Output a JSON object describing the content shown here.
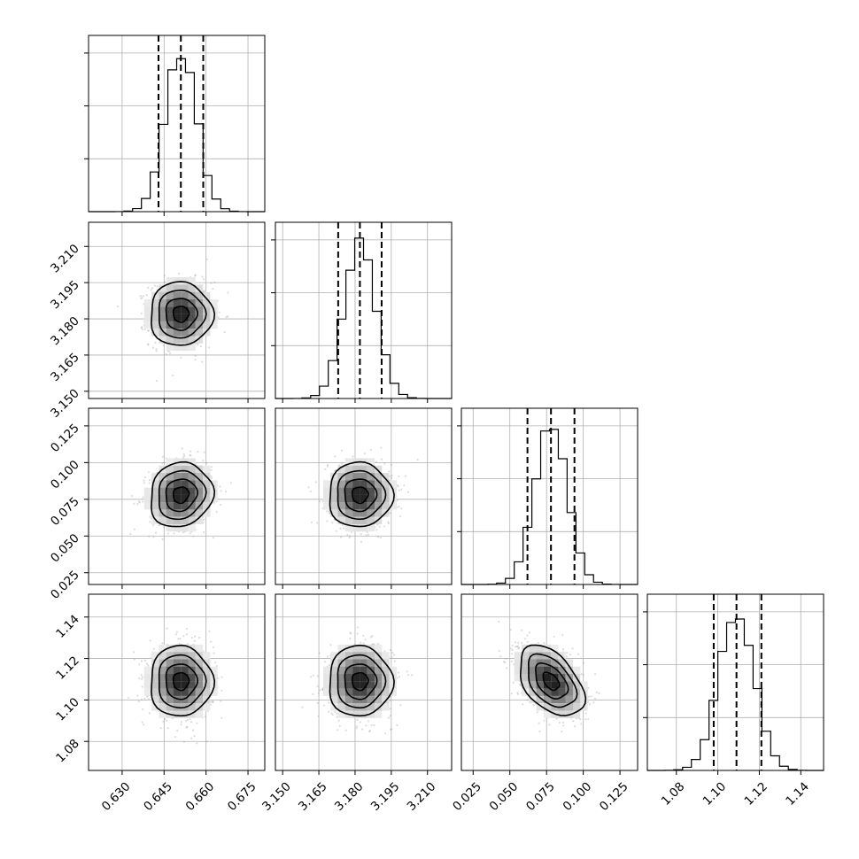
{
  "chart_data": {
    "type": "corner",
    "title": "",
    "parameters": [
      {
        "ylabel": "",
        "xlabel": "",
        "range": [
          0.618,
          0.681
        ],
        "median": 0.651,
        "quantile_lo": 0.643,
        "quantile_hi": 0.659,
        "sigma": 0.0056,
        "ticks": [
          0.63,
          0.645,
          0.66,
          0.675
        ],
        "tick_labels": [
          "0.630",
          "0.645",
          "0.660",
          "0.675"
        ]
      },
      {
        "ylabel": "",
        "xlabel": "",
        "range": [
          3.147,
          3.22
        ],
        "median": 3.182,
        "quantile_lo": 3.173,
        "quantile_hi": 3.191,
        "sigma": 0.0066,
        "ticks": [
          3.15,
          3.165,
          3.18,
          3.195,
          3.21
        ],
        "tick_labels": [
          "3.150",
          "3.165",
          "3.180",
          "3.195",
          "3.210"
        ]
      },
      {
        "ylabel": "",
        "xlabel": "",
        "range": [
          0.017,
          0.137
        ],
        "median": 0.078,
        "quantile_lo": 0.062,
        "quantile_hi": 0.094,
        "sigma": 0.011,
        "ticks": [
          0.025,
          0.05,
          0.075,
          0.1,
          0.125
        ],
        "tick_labels": [
          "0.025",
          "0.050",
          "0.075",
          "0.100",
          "0.125"
        ]
      },
      {
        "ylabel": "",
        "xlabel": "",
        "range": [
          1.066,
          1.151
        ],
        "median": 1.109,
        "quantile_lo": 1.098,
        "quantile_hi": 1.121,
        "sigma": 0.0085,
        "ticks": [
          1.08,
          1.1,
          1.12,
          1.14
        ],
        "tick_labels": [
          "1.08",
          "1.10",
          "1.12",
          "1.14"
        ]
      }
    ],
    "correlations": [
      {
        "i": 2,
        "j": 0,
        "rho": 0.1
      },
      {
        "i": 3,
        "j": 2,
        "rho": -0.45
      }
    ],
    "quantiles": [
      0.16,
      0.5,
      0.84
    ],
    "contour_levels": [
      0.5,
      1.0,
      1.5,
      2.0
    ],
    "grid": true,
    "legend": "none"
  }
}
